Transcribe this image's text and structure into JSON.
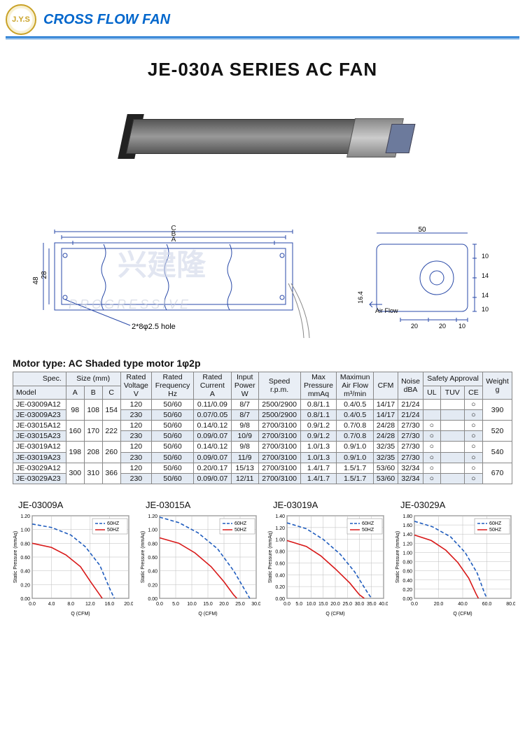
{
  "header": {
    "logo_text": "J.Y.S",
    "brand": "CROSS FLOW FAN"
  },
  "title": "JE-030A SERIES AC FAN",
  "motor_type": "Motor type: AC Shaded type motor 1φ2p",
  "dimensions": {
    "box_width_labels": [
      "C",
      "B",
      "A"
    ],
    "left_dim_48": "48",
    "left_dim_28": "28",
    "hole_note": "2*8φ2.5 hole",
    "right_top_50": "50",
    "right_h_10a": "10",
    "right_h_14a": "14",
    "right_h_14b": "14",
    "right_h_10b": "10",
    "right_b_20a": "20",
    "right_b_20b": "20",
    "right_b_10": "10",
    "airflow_label": "Air Flow",
    "airflow_16_4": "16.4"
  },
  "spec_table": {
    "headers": {
      "spec": "Spec.",
      "model": "Model",
      "size": "Size (mm)",
      "A": "A",
      "B": "B",
      "C": "C",
      "rv": "Rated\nVoltage\nV",
      "rf": "Rated\nFrequency\nHz",
      "rc": "Rated\nCurrent\nA",
      "ip": "Input\nPower\nW",
      "spd": "Speed\nr.p.m.",
      "mp": "Max\nPressure\nmmAq",
      "maf": "Maximun\nAir Flow\nm³/min",
      "cfm": "CFM",
      "noise": "Noise\ndBA",
      "sa": "Safety Approval",
      "ul": "UL",
      "tuv": "TUV",
      "ce": "CE",
      "wt": "Weight\ng"
    },
    "groups": [
      {
        "A": "98",
        "B": "108",
        "C": "154",
        "wt": "390",
        "rows": [
          {
            "model": "JE-03009A12",
            "v": "120",
            "hz": "50/60",
            "cur": "0.11/0.09",
            "pw": "8/7",
            "spd": "2500/2900",
            "mp": "0.8/1.1",
            "maf": "0.4/0.5",
            "cfm": "14/17",
            "db": "21/24",
            "ul": "",
            "tuv": "",
            "ce": "○"
          },
          {
            "model": "JE-03009A23",
            "v": "230",
            "hz": "50/60",
            "cur": "0.07/0.05",
            "pw": "8/7",
            "spd": "2500/2900",
            "mp": "0.8/1.1",
            "maf": "0.4/0.5",
            "cfm": "14/17",
            "db": "21/24",
            "ul": "",
            "tuv": "",
            "ce": "○",
            "hl": true
          }
        ]
      },
      {
        "A": "160",
        "B": "170",
        "C": "222",
        "wt": "520",
        "rows": [
          {
            "model": "JE-03015A12",
            "v": "120",
            "hz": "50/60",
            "cur": "0.14/0.12",
            "pw": "9/8",
            "spd": "2700/3100",
            "mp": "0.9/1.2",
            "maf": "0.7/0.8",
            "cfm": "24/28",
            "db": "27/30",
            "ul": "○",
            "tuv": "",
            "ce": "○"
          },
          {
            "model": "JE-03015A23",
            "v": "230",
            "hz": "50/60",
            "cur": "0.09/0.07",
            "pw": "10/9",
            "spd": "2700/3100",
            "mp": "0.9/1.2",
            "maf": "0.7/0.8",
            "cfm": "24/28",
            "db": "27/30",
            "ul": "○",
            "tuv": "",
            "ce": "○",
            "hl": true
          }
        ]
      },
      {
        "A": "198",
        "B": "208",
        "C": "260",
        "wt": "540",
        "rows": [
          {
            "model": "JE-03019A12",
            "v": "120",
            "hz": "50/60",
            "cur": "0.14/0.12",
            "pw": "9/8",
            "spd": "2700/3100",
            "mp": "1.0/1.3",
            "maf": "0.9/1.0",
            "cfm": "32/35",
            "db": "27/30",
            "ul": "○",
            "tuv": "",
            "ce": "○"
          },
          {
            "model": "JE-03019A23",
            "v": "230",
            "hz": "50/60",
            "cur": "0.09/0.07",
            "pw": "11/9",
            "spd": "2700/3100",
            "mp": "1.0/1.3",
            "maf": "0.9/1.0",
            "cfm": "32/35",
            "db": "27/30",
            "ul": "○",
            "tuv": "",
            "ce": "○",
            "hl": true
          }
        ]
      },
      {
        "A": "300",
        "B": "310",
        "C": "366",
        "wt": "670",
        "rows": [
          {
            "model": "JE-03029A12",
            "v": "120",
            "hz": "50/60",
            "cur": "0.20/0.17",
            "pw": "15/13",
            "spd": "2700/3100",
            "mp": "1.4/1.7",
            "maf": "1.5/1.7",
            "cfm": "53/60",
            "db": "32/34",
            "ul": "○",
            "tuv": "",
            "ce": "○"
          },
          {
            "model": "JE-03029A23",
            "v": "230",
            "hz": "50/60",
            "cur": "0.09/0.07",
            "pw": "12/11",
            "spd": "2700/3100",
            "mp": "1.4/1.7",
            "maf": "1.5/1.7",
            "cfm": "53/60",
            "db": "32/34",
            "ul": "○",
            "tuv": "",
            "ce": "○",
            "hl": true
          }
        ]
      }
    ]
  },
  "charts_common": {
    "ylabel": "Static Pressure (mmAq)",
    "xlabel": "Q (CFM)",
    "color_60hz": "#1e5bbd",
    "color_50hz": "#d81818",
    "legend_60": "60HZ",
    "legend_50": "50HZ",
    "grid_color": "#bdbdbd",
    "axis_color": "#333",
    "bg": "#ffffff"
  },
  "charts": [
    {
      "title": "JE-03009A",
      "ymax": 1.2,
      "ystep": 0.2,
      "xmax": 20,
      "xstep": 4,
      "s60": [
        [
          0,
          1.08
        ],
        [
          4,
          1.03
        ],
        [
          8,
          0.92
        ],
        [
          11,
          0.75
        ],
        [
          14,
          0.48
        ],
        [
          16,
          0.15
        ],
        [
          17,
          0
        ]
      ],
      "s50": [
        [
          0,
          0.8
        ],
        [
          4,
          0.74
        ],
        [
          7,
          0.63
        ],
        [
          10,
          0.46
        ],
        [
          12,
          0.25
        ],
        [
          14,
          0.05
        ],
        [
          14.5,
          0
        ]
      ]
    },
    {
      "title": "JE-03015A",
      "ymax": 1.2,
      "ystep": 0.2,
      "xmax": 30,
      "xstep": 5,
      "s60": [
        [
          0,
          1.18
        ],
        [
          6,
          1.1
        ],
        [
          12,
          0.95
        ],
        [
          18,
          0.72
        ],
        [
          23,
          0.4
        ],
        [
          27,
          0.08
        ],
        [
          28,
          0
        ]
      ],
      "s50": [
        [
          0,
          0.88
        ],
        [
          6,
          0.8
        ],
        [
          11,
          0.66
        ],
        [
          16,
          0.46
        ],
        [
          20,
          0.24
        ],
        [
          23,
          0.05
        ],
        [
          24,
          0
        ]
      ]
    },
    {
      "title": "JE-03019A",
      "ymax": 1.4,
      "ystep": 0.2,
      "xmax": 40,
      "xstep": 5,
      "s60": [
        [
          0,
          1.28
        ],
        [
          8,
          1.18
        ],
        [
          15,
          1.0
        ],
        [
          22,
          0.75
        ],
        [
          28,
          0.45
        ],
        [
          33,
          0.12
        ],
        [
          35,
          0
        ]
      ],
      "s50": [
        [
          0,
          0.98
        ],
        [
          8,
          0.88
        ],
        [
          14,
          0.72
        ],
        [
          20,
          0.5
        ],
        [
          26,
          0.26
        ],
        [
          30,
          0.06
        ],
        [
          32,
          0
        ]
      ]
    },
    {
      "title": "JE-03029A",
      "ymax": 1.8,
      "ystep": 0.2,
      "xmax": 80,
      "xstep": 20,
      "s60": [
        [
          0,
          1.68
        ],
        [
          15,
          1.56
        ],
        [
          30,
          1.34
        ],
        [
          42,
          1.0
        ],
        [
          52,
          0.55
        ],
        [
          58,
          0.12
        ],
        [
          60,
          0
        ]
      ],
      "s50": [
        [
          0,
          1.38
        ],
        [
          14,
          1.26
        ],
        [
          26,
          1.05
        ],
        [
          36,
          0.78
        ],
        [
          45,
          0.44
        ],
        [
          51,
          0.1
        ],
        [
          53,
          0
        ]
      ]
    }
  ]
}
